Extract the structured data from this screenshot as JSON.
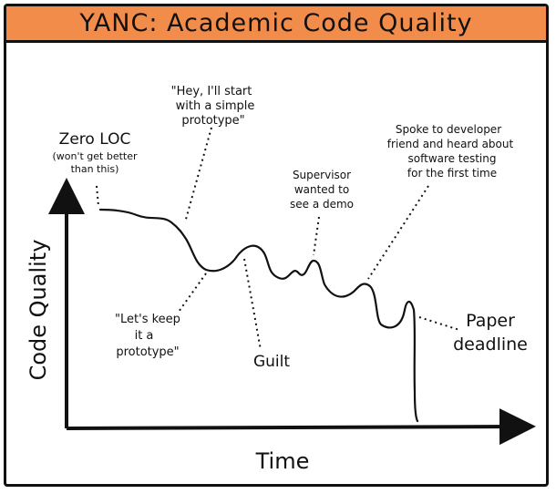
{
  "title": "YANC: Academic Code Quality",
  "axes": {
    "x_label": "Time",
    "y_label": "Code Quality"
  },
  "annotations": {
    "zero_loc": {
      "line1": "Zero LOC",
      "line2": "(won't get better",
      "line3": "than this)"
    },
    "prototype_start": {
      "line1": "\"Hey, I'll start",
      "line2": "with a simple",
      "line3": "prototype\""
    },
    "keep_prototype": {
      "line1": "\"Let's keep",
      "line2": "it a",
      "line3": "prototype\""
    },
    "guilt": {
      "line1": "Guilt"
    },
    "demo": {
      "line1": "Supervisor",
      "line2": "wanted to",
      "line3": "see a demo"
    },
    "testing": {
      "line1": "Spoke to developer",
      "line2": "friend and heard about",
      "line3": "software testing",
      "line4": "for the first time"
    },
    "deadline": {
      "line1": "Paper",
      "line2": "deadline"
    }
  },
  "colors": {
    "title_bar": "#f28c4a",
    "ink": "#111111"
  }
}
